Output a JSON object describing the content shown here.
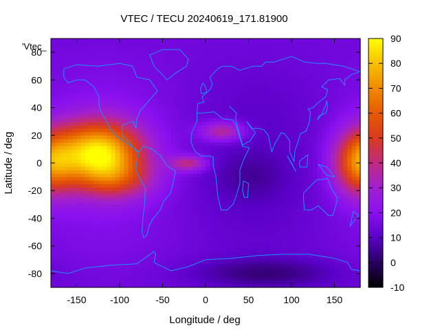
{
  "chart_data": {
    "type": "heatmap",
    "title": "VTEC / TECU 20240619_171.81900",
    "xlabel": "Longitude / deg",
    "ylabel": "Latitude / deg",
    "legend_label": "'Vtec_",
    "xlim": [
      -180,
      180
    ],
    "ylim": [
      -90,
      90
    ],
    "xticks": [
      -150,
      -100,
      -50,
      0,
      50,
      100,
      150
    ],
    "yticks": [
      -80,
      -60,
      -40,
      -20,
      0,
      20,
      40,
      60,
      80
    ],
    "colorbar": {
      "range": [
        -10,
        90
      ],
      "ticks": [
        -10,
        0,
        10,
        20,
        30,
        40,
        50,
        60,
        70,
        80,
        90
      ],
      "palette": [
        "#000000",
        "#2a0060",
        "#5a00c8",
        "#8a10f0",
        "#a020d0",
        "#c02a80",
        "#d83a20",
        "#e65a00",
        "#f08a00",
        "#f8c000",
        "#ffff00"
      ]
    },
    "grid": false,
    "background_tec": 15,
    "features": [
      {
        "lon": -125,
        "lat": 7,
        "sigma_lon": 35,
        "sigma_lat": 16,
        "amplitude": 70
      },
      {
        "lon": -100,
        "lat": -12,
        "sigma_lon": 30,
        "sigma_lat": 10,
        "amplitude": 18
      },
      {
        "lon": 178,
        "lat": 0,
        "sigma_lon": 20,
        "sigma_lat": 16,
        "amplitude": 42
      },
      {
        "lon": 20,
        "lat": 23,
        "sigma_lon": 18,
        "sigma_lat": 5,
        "amplitude": 25
      },
      {
        "lon": -20,
        "lat": 0,
        "sigma_lon": 15,
        "sigma_lat": 4,
        "amplitude": 25
      },
      {
        "lon": 70,
        "lat": -80,
        "sigma_lon": 60,
        "sigma_lat": 8,
        "amplitude": -12
      },
      {
        "lon": 50,
        "lat": -10,
        "sigma_lon": 30,
        "sigma_lat": 12,
        "amplitude": -5
      }
    ]
  }
}
